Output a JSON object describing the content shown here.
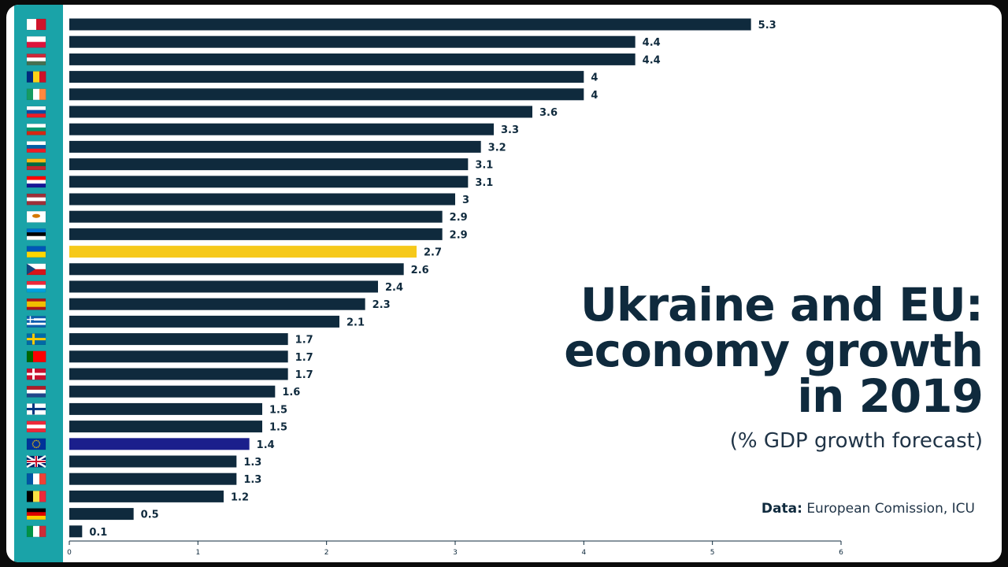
{
  "colors": {
    "bar": "#0f2a3d",
    "ukraine": "#f6c91a",
    "eu": "#1b1f8c",
    "strip": "#1aa3a8"
  },
  "title_lines": [
    "Ukraine and EU:",
    "economy growth",
    "in 2019"
  ],
  "subtitle": "(% GDP growth forecast)",
  "source": {
    "prefix": "Data:",
    "text": "European Comission, ICU"
  },
  "chart_data": {
    "type": "bar",
    "orientation": "horizontal",
    "title": "Ukraine and EU: economy growth in 2019",
    "subtitle": "(% GDP growth forecast)",
    "xlim": [
      0,
      6
    ],
    "xticks": [
      "0",
      "1",
      "2",
      "3",
      "4",
      "5",
      "6"
    ],
    "grid": false,
    "categories": [
      "Malta",
      "Poland",
      "Hungary",
      "Romania",
      "Ireland",
      "Slovakia",
      "Bulgaria",
      "Slovenia",
      "Lithuania",
      "Croatia",
      "Latvia",
      "Cyprus",
      "Estonia",
      "Ukraine",
      "Czech Republic",
      "Luxembourg",
      "Spain",
      "Greece",
      "Sweden",
      "Portugal",
      "Denmark",
      "Netherlands",
      "Finland",
      "Austria",
      "EU",
      "United Kingdom",
      "France",
      "Belgium",
      "Germany",
      "Italy"
    ],
    "values": [
      5.3,
      4.4,
      4.4,
      4,
      4,
      3.6,
      3.3,
      3.2,
      3.1,
      3.1,
      3,
      2.9,
      2.9,
      2.7,
      2.6,
      2.4,
      2.3,
      2.1,
      1.7,
      1.7,
      1.7,
      1.6,
      1.5,
      1.5,
      1.4,
      1.3,
      1.3,
      1.2,
      0.5,
      0.1
    ],
    "value_labels": [
      "5.3",
      "4.4",
      "4.4",
      "4",
      "4",
      "3.6",
      "3.3",
      "3.2",
      "3.1",
      "3.1",
      "3",
      "2.9",
      "2.9",
      "2.7",
      "2.6",
      "2.4",
      "2.3",
      "2.1",
      "1.7",
      "1.7",
      "1.7",
      "1.6",
      "1.5",
      "1.5",
      "1.4",
      "1.3",
      "1.3",
      "1.2",
      "0.5",
      "0.1"
    ],
    "flag_icons": [
      "malta-flag-icon",
      "poland-flag-icon",
      "hungary-flag-icon",
      "romania-flag-icon",
      "ireland-flag-icon",
      "slovakia-flag-icon",
      "bulgaria-flag-icon",
      "slovenia-flag-icon",
      "lithuania-flag-icon",
      "croatia-flag-icon",
      "latvia-flag-icon",
      "cyprus-flag-icon",
      "estonia-flag-icon",
      "ukraine-flag-icon",
      "czech-flag-icon",
      "luxembourg-flag-icon",
      "spain-flag-icon",
      "greece-flag-icon",
      "sweden-flag-icon",
      "portugal-flag-icon",
      "denmark-flag-icon",
      "netherlands-flag-icon",
      "finland-flag-icon",
      "austria-flag-icon",
      "eu-flag-icon",
      "uk-flag-icon",
      "france-flag-icon",
      "belgium-flag-icon",
      "germany-flag-icon",
      "italy-flag-icon"
    ],
    "highlights": {
      "Ukraine": "#f6c91a",
      "EU": "#1b1f8c"
    }
  }
}
